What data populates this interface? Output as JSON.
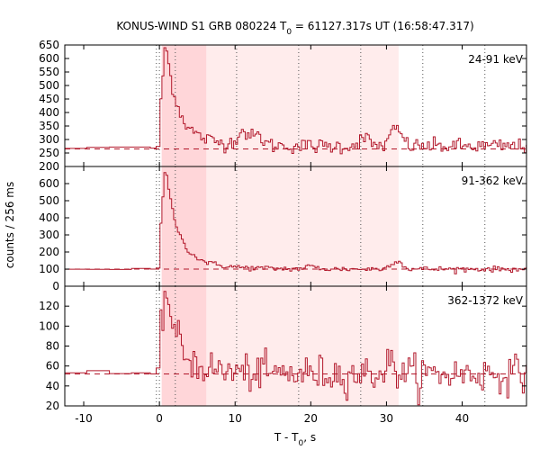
{
  "chart_data": {
    "type": "line",
    "title_prefix": "KONUS-WIND S1 GRB 080224 T",
    "title_sub": "0",
    "title_suffix": " = 61127.317s UT (16:58:47.317)",
    "xlabel_prefix": "T - T",
    "xlabel_sub": "0",
    "xlabel_suffix": ", s",
    "ylabel": "counts / 256 ms",
    "xlim": [
      -12.5,
      48.5
    ],
    "x_ticks": [
      -10,
      0,
      10,
      20,
      30,
      40
    ],
    "shaded_intervals": {
      "dark": [
        0.3,
        6.2
      ],
      "light": [
        6.2,
        31.6
      ]
    },
    "marker_lines_x": [
      0,
      2.1,
      10.2,
      18.4,
      26.6,
      34.8,
      43.0
    ],
    "panels": [
      {
        "band": "24-91 keV",
        "ylim": [
          200,
          650
        ],
        "y_ticks": [
          200,
          250,
          300,
          350,
          400,
          450,
          500,
          550,
          600,
          650
        ],
        "background_level": 265,
        "pre_level": 268,
        "peak": 580,
        "tail_level": 275,
        "bumps": [
          [
            11.0,
            50
          ],
          [
            13.0,
            35
          ],
          [
            27.0,
            30
          ],
          [
            31.3,
            65
          ]
        ],
        "noise": 14
      },
      {
        "band": "91-362 keV",
        "ylim": [
          0,
          700
        ],
        "y_ticks": [
          0,
          100,
          200,
          300,
          400,
          500,
          600
        ],
        "background_level": 100,
        "pre_level": 100,
        "peak": 590,
        "tail_level": 100,
        "bumps": [
          [
            31.3,
            50
          ],
          [
            20.0,
            15
          ]
        ],
        "noise": 8
      },
      {
        "band": "362-1372 keV",
        "ylim": [
          20,
          140
        ],
        "y_ticks": [
          20,
          40,
          60,
          80,
          100,
          120
        ],
        "background_level": 52,
        "pre_level": 52,
        "peak": 125,
        "tail_level": 52,
        "bumps": [
          [
            30.5,
            10
          ]
        ],
        "noise": 7
      }
    ]
  }
}
